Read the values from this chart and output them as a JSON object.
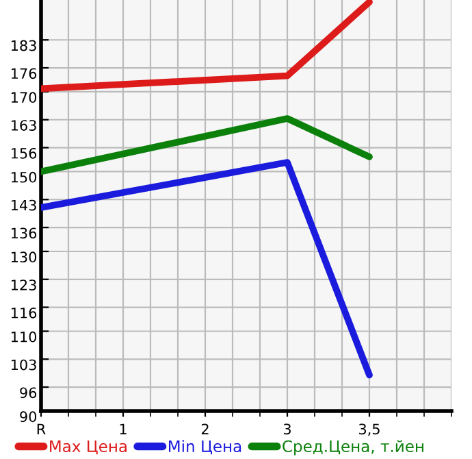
{
  "chart_data": {
    "type": "line",
    "categories": [
      "R",
      "1",
      "2",
      "3",
      "3,5"
    ],
    "series": [
      {
        "name": "Max Цена",
        "color": "#dd1b1b",
        "values": [
          170.8,
          null,
          null,
          174,
          192.5
        ]
      },
      {
        "name": "Min Цена",
        "color": "#1b1bdd",
        "values": [
          141,
          null,
          null,
          152.3,
          99
        ]
      },
      {
        "name": "Сред.Цена, т.йен",
        "color": "#0b800b",
        "values": [
          150,
          null,
          null,
          163.3,
          153.7
        ]
      }
    ],
    "ylim": [
      90,
      193
    ],
    "yticks": [
      90,
      96,
      103,
      110,
      116,
      123,
      130,
      136,
      143,
      150,
      156,
      163,
      170,
      176,
      183
    ],
    "grid": true,
    "legend": "bottom",
    "marker": "none",
    "line_style": "solid"
  }
}
